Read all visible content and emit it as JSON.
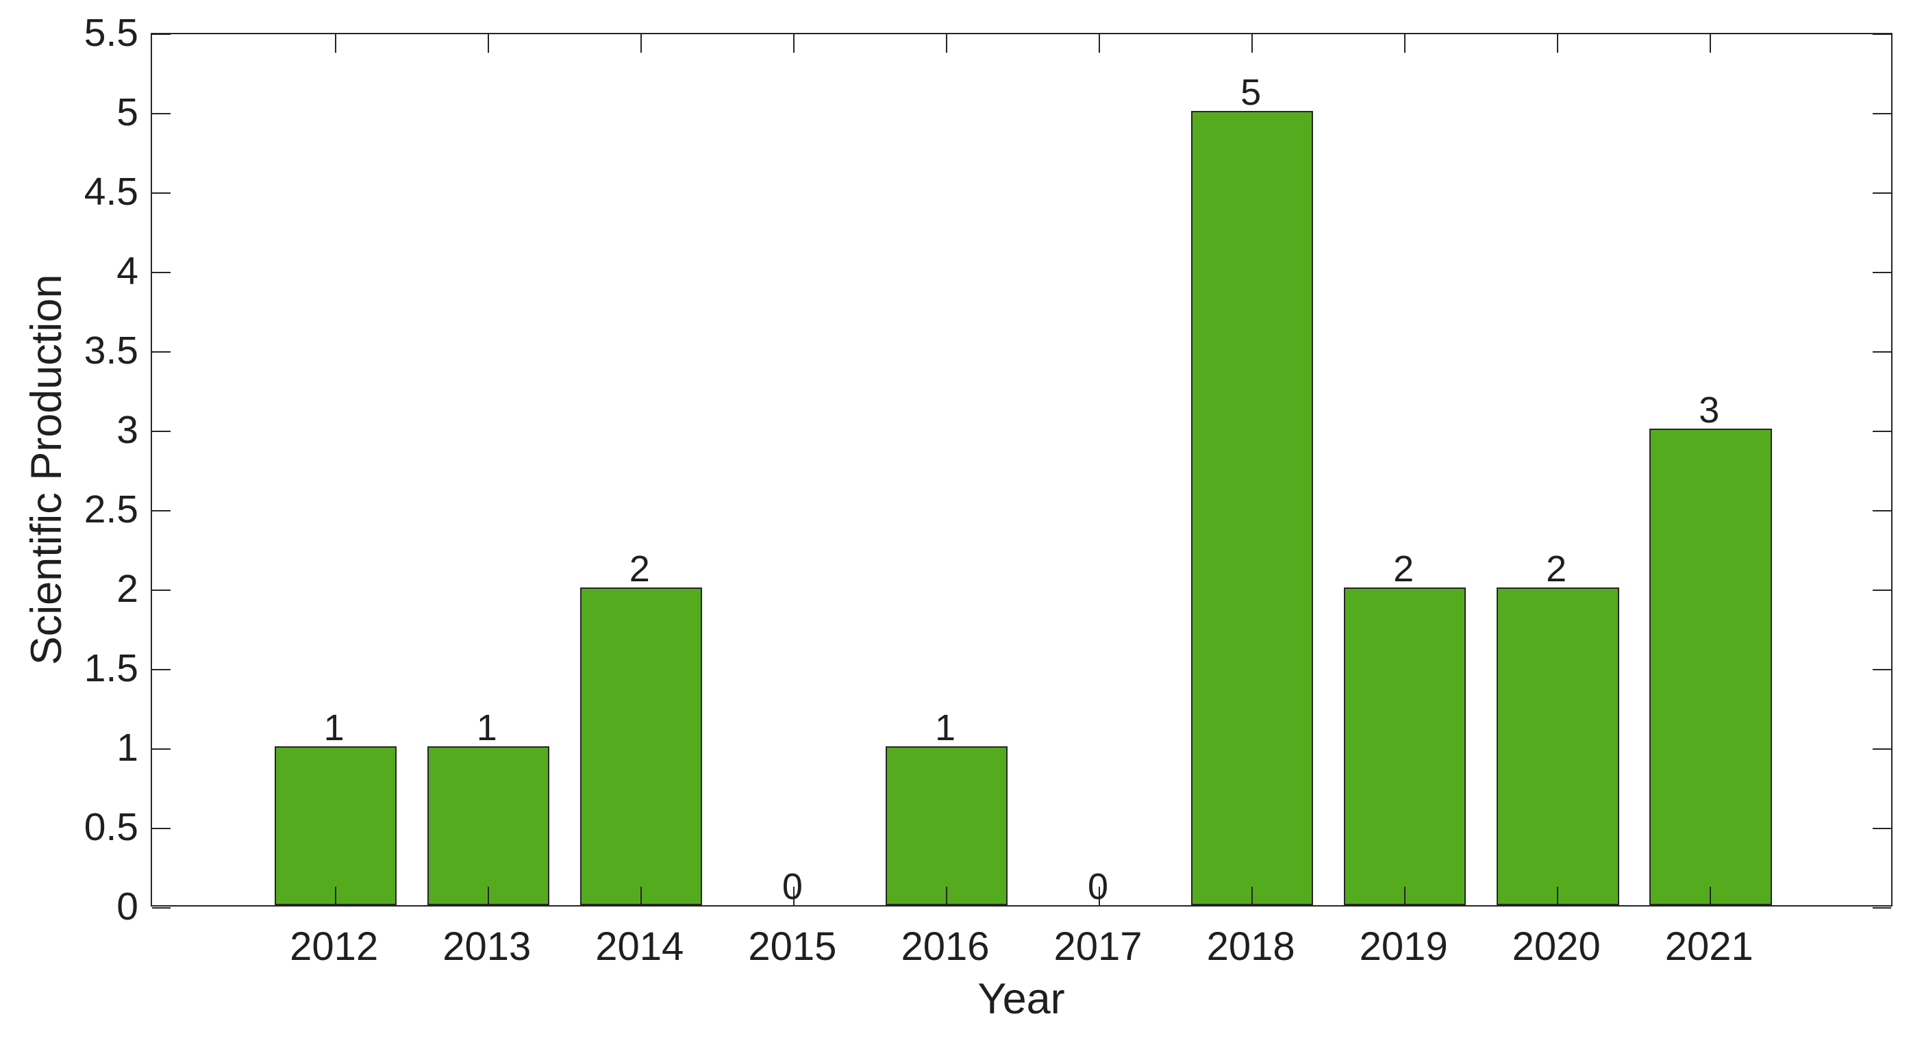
{
  "figure": {
    "background_color": "#ffffff",
    "text_color": "#1f1f1f",
    "axis_color": "#262626"
  },
  "chart_data": {
    "type": "bar",
    "title": "",
    "xlabel": "Year",
    "ylabel": "Scientific Production",
    "categories": [
      2012,
      2013,
      2014,
      2015,
      2016,
      2017,
      2018,
      2019,
      2020,
      2021
    ],
    "values": [
      1,
      1,
      2,
      0,
      1,
      0,
      5,
      2,
      2,
      3
    ],
    "bar_labels": [
      "1",
      "1",
      "2",
      "0",
      "1",
      "0",
      "5",
      "2",
      "2",
      "3"
    ],
    "xtick_labels": [
      "2012",
      "2013",
      "2014",
      "2015",
      "2016",
      "2017",
      "2018",
      "2019",
      "2020",
      "2021"
    ],
    "yticks": [
      0,
      0.5,
      1,
      1.5,
      2,
      2.5,
      3,
      3.5,
      4,
      4.5,
      5,
      5.5
    ],
    "ytick_labels": [
      "0",
      "0.5",
      "1",
      "1.5",
      "2",
      "2.5",
      "3",
      "3.5",
      "4",
      "4.5",
      "5",
      "5.5"
    ],
    "xlim": [
      2010.8,
      2022.2
    ],
    "ylim": [
      0,
      5.5
    ],
    "bar_width_units": 0.8,
    "grid": false,
    "legend": "none",
    "box": true,
    "tick_direction": "in",
    "bar_color": "#55AB1E",
    "bar_edge_color": "#262626"
  }
}
